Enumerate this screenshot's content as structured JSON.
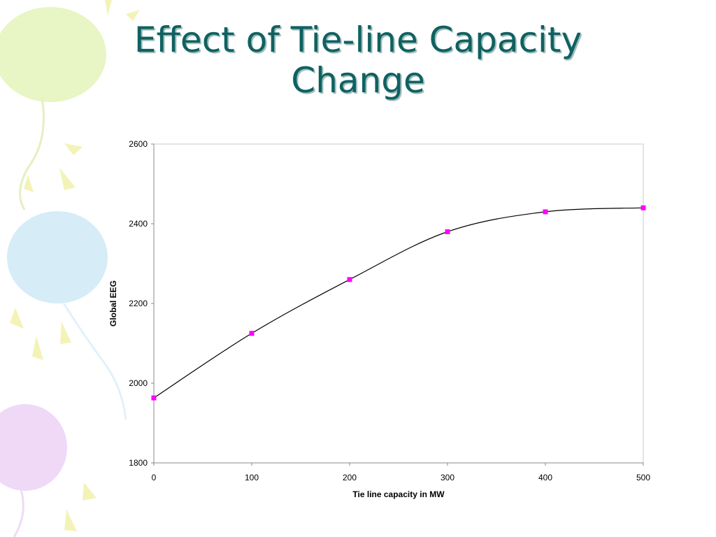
{
  "slide": {
    "title_line1": "Effect of Tie-line Capacity",
    "title_line2": "Change"
  },
  "colors": {
    "title": "#0f6161",
    "line": "#000000",
    "marker": "#ff00ff",
    "balloon_green": "#e8f5c4",
    "balloon_blue": "#d6ecf7",
    "balloon_purple": "#efd9f7",
    "confetti": "#f3f3b8"
  },
  "chart_data": {
    "type": "line",
    "title": "",
    "xlabel": "Tie line capacity in MW",
    "ylabel": "Global EEG",
    "xlim": [
      0,
      500
    ],
    "ylim": [
      1800,
      2600
    ],
    "xticks": [
      0,
      100,
      200,
      300,
      400,
      500
    ],
    "yticks": [
      1800,
      2000,
      2200,
      2400,
      2600
    ],
    "grid": false,
    "legend": "none",
    "smoothed": true,
    "series": [
      {
        "x": [
          0,
          100,
          200,
          300,
          400,
          500
        ],
        "y": [
          1963,
          2125,
          2260,
          2380,
          2430,
          2440
        ],
        "marker": "square"
      }
    ]
  }
}
